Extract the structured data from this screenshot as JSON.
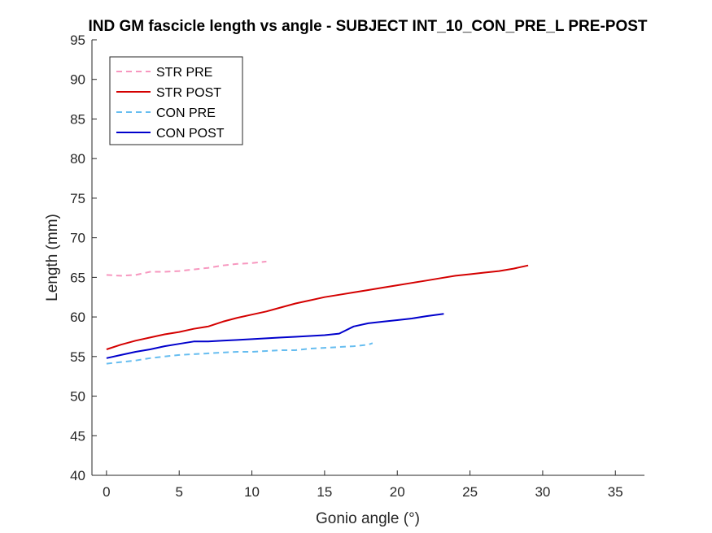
{
  "chart_data": {
    "type": "line",
    "title": "IND GM fascicle length vs angle - SUBJECT INT_10_CON_PRE_L PRE-POST",
    "xlabel": "Gonio angle (°)",
    "ylabel": "Length (mm)",
    "xlim": [
      -1,
      37
    ],
    "ylim": [
      40,
      95
    ],
    "xticks": [
      0,
      5,
      10,
      15,
      20,
      25,
      30,
      35
    ],
    "yticks": [
      40,
      45,
      50,
      55,
      60,
      65,
      70,
      75,
      80,
      85,
      90,
      95
    ],
    "grid": false,
    "legend_position": "top-left",
    "series": [
      {
        "name": "STR PRE",
        "color": "#f797bf",
        "dash": "dashed",
        "x": [
          0,
          1,
          2,
          3,
          4,
          5,
          6,
          7,
          8,
          9,
          10,
          11
        ],
        "y": [
          65.3,
          65.2,
          65.3,
          65.7,
          65.7,
          65.8,
          66.0,
          66.2,
          66.5,
          66.7,
          66.8,
          67.0
        ]
      },
      {
        "name": "STR POST",
        "color": "#d40000",
        "dash": "solid",
        "x": [
          0,
          1,
          2,
          3,
          4,
          5,
          6,
          7,
          8,
          9,
          10,
          11,
          12,
          13,
          14,
          15,
          16,
          17,
          18,
          19,
          20,
          21,
          22,
          23,
          24,
          25,
          26,
          27,
          28,
          29
        ],
        "y": [
          55.9,
          56.5,
          57.0,
          57.4,
          57.8,
          58.1,
          58.5,
          58.8,
          59.4,
          59.9,
          60.3,
          60.7,
          61.2,
          61.7,
          62.1,
          62.5,
          62.8,
          63.1,
          63.4,
          63.7,
          64.0,
          64.3,
          64.6,
          64.9,
          65.2,
          65.4,
          65.6,
          65.8,
          66.1,
          66.5
        ]
      },
      {
        "name": "CON PRE",
        "color": "#66bdf0",
        "dash": "dashed",
        "x": [
          0,
          1,
          2,
          3,
          4,
          5,
          6,
          7,
          8,
          9,
          10,
          11,
          12,
          13,
          14,
          15,
          16,
          17,
          18,
          18.3
        ],
        "y": [
          54.1,
          54.3,
          54.5,
          54.8,
          55.0,
          55.2,
          55.3,
          55.4,
          55.5,
          55.6,
          55.6,
          55.7,
          55.8,
          55.8,
          56.0,
          56.1,
          56.2,
          56.3,
          56.5,
          56.7
        ]
      },
      {
        "name": "CON POST",
        "color": "#0000cc",
        "dash": "solid",
        "x": [
          0,
          1,
          2,
          3,
          4,
          5,
          6,
          7,
          8,
          9,
          10,
          11,
          12,
          13,
          14,
          15,
          16,
          17,
          18,
          19,
          20,
          21,
          22,
          23.2
        ],
        "y": [
          54.8,
          55.2,
          55.6,
          55.9,
          56.3,
          56.6,
          56.9,
          56.9,
          57.0,
          57.1,
          57.2,
          57.3,
          57.4,
          57.5,
          57.6,
          57.7,
          57.9,
          58.8,
          59.2,
          59.4,
          59.6,
          59.8,
          60.1,
          60.4
        ]
      }
    ]
  }
}
